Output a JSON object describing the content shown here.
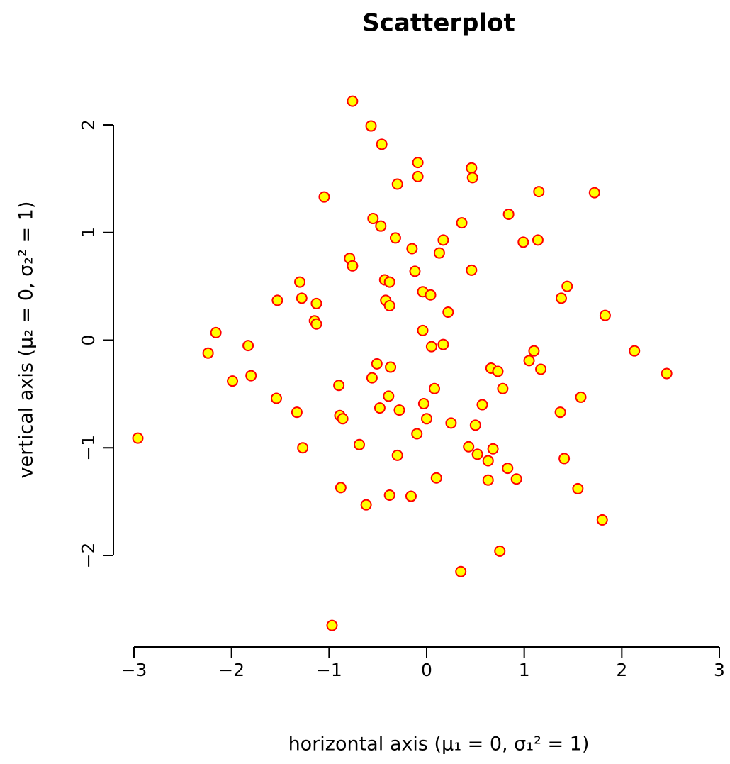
{
  "chart_data": {
    "type": "scatter",
    "title": "Scatterplot",
    "x_label": "horizontal axis (μ₁ = 0, σ₁² = 1)",
    "y_label": "vertical axis (μ₂ = 0, σ₂² = 1)",
    "fill_color": "#ffff00",
    "edge_color": "#ff0000",
    "xlim": [
      -3,
      3
    ],
    "ylim": [
      -2.86,
      2.41
    ],
    "xticks": [
      {
        "value": -3,
        "label": "−3"
      },
      {
        "value": -2,
        "label": "−2"
      },
      {
        "value": -1,
        "label": "−1"
      },
      0,
      1,
      2,
      3
    ],
    "yticks": [
      {
        "value": -2,
        "label": "−2"
      },
      {
        "value": -1,
        "label": "−1"
      },
      0,
      1,
      2
    ],
    "x": [
      -0.76,
      -0.57,
      -0.46,
      -0.09,
      0.46,
      -0.09,
      0.47,
      -0.3,
      -1.05,
      1.15,
      1.72,
      0.84,
      -0.55,
      -0.47,
      0.36,
      -0.32,
      0.17,
      0.99,
      1.14,
      -0.15,
      0.13,
      -0.79,
      -0.76,
      -0.12,
      0.46,
      -1.3,
      -0.43,
      -0.38,
      1.44,
      -0.04,
      0.04,
      1.38,
      -1.53,
      -1.28,
      -0.42,
      -1.13,
      -0.38,
      0.22,
      1.83,
      -1.15,
      -1.13,
      -0.04,
      -2.16,
      -1.83,
      0.05,
      0.17,
      -2.24,
      1.1,
      2.13,
      1.05,
      -0.51,
      -0.37,
      1.17,
      0.66,
      0.73,
      2.46,
      -1.8,
      -0.56,
      -1.99,
      -0.9,
      0.08,
      0.78,
      -0.39,
      -1.54,
      1.58,
      -0.03,
      0.57,
      -0.48,
      -0.28,
      -1.33,
      1.37,
      -0.89,
      -0.86,
      0.0,
      0.25,
      0.5,
      -0.1,
      -2.96,
      -0.69,
      -1.27,
      0.43,
      0.68,
      -0.3,
      0.52,
      0.63,
      1.41,
      0.83,
      -0.88,
      0.1,
      0.63,
      0.92,
      1.55,
      -0.38,
      -0.16,
      -0.62,
      1.8,
      0.75,
      0.35,
      -0.97
    ],
    "values": [
      2.22,
      1.99,
      1.82,
      1.65,
      1.6,
      1.52,
      1.51,
      1.45,
      1.33,
      1.38,
      1.37,
      1.17,
      1.13,
      1.06,
      1.09,
      0.95,
      0.93,
      0.91,
      0.93,
      0.85,
      0.81,
      0.76,
      0.69,
      0.64,
      0.65,
      0.54,
      0.56,
      0.54,
      0.5,
      0.45,
      0.42,
      0.39,
      0.37,
      0.39,
      0.37,
      0.34,
      0.32,
      0.26,
      0.23,
      0.18,
      0.15,
      0.09,
      0.07,
      -0.05,
      -0.06,
      -0.04,
      -0.12,
      -0.1,
      -0.1,
      -0.19,
      -0.22,
      -0.25,
      -0.27,
      -0.26,
      -0.29,
      -0.31,
      -0.33,
      -0.35,
      -0.38,
      -0.42,
      -0.45,
      -0.45,
      -0.52,
      -0.54,
      -0.53,
      -0.59,
      -0.6,
      -0.63,
      -0.65,
      -0.67,
      -0.67,
      -0.7,
      -0.73,
      -0.73,
      -0.77,
      -0.79,
      -0.87,
      -0.91,
      -0.97,
      -1.0,
      -0.99,
      -1.01,
      -1.07,
      -1.06,
      -1.12,
      -1.1,
      -1.19,
      -1.37,
      -1.28,
      -1.3,
      -1.29,
      -1.38,
      -1.44,
      -1.45,
      -1.53,
      -1.67,
      -1.96,
      -2.15,
      -2.65
    ]
  }
}
